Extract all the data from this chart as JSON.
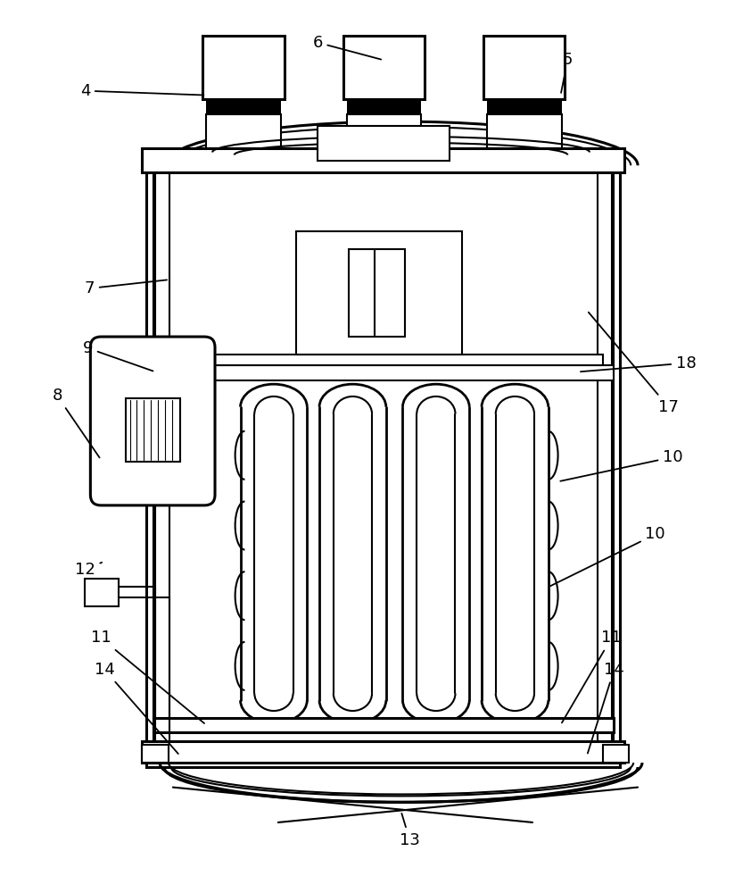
{
  "bg_color": "#ffffff",
  "lc": "#000000",
  "lw": 1.5,
  "tlw": 2.2
}
